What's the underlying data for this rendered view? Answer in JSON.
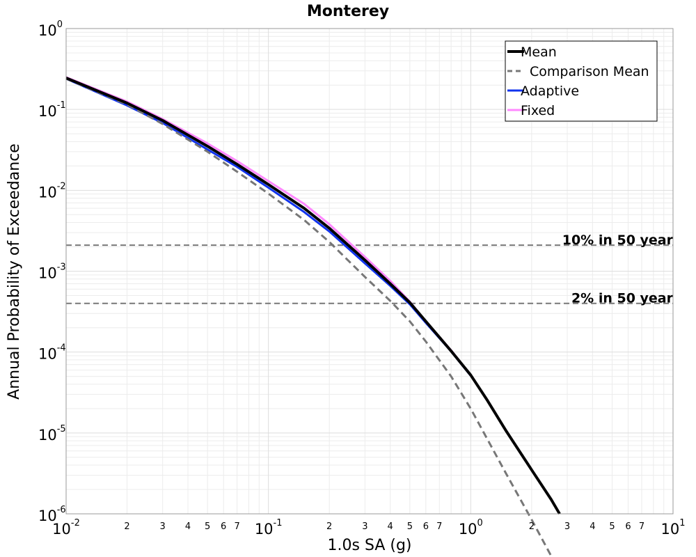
{
  "chart_data": {
    "type": "line",
    "title": "Monterey",
    "xlabel": "1.0s SA (g)",
    "ylabel": "Annual Probability of Exceedance",
    "xscale": "log",
    "yscale": "log",
    "xlim": [
      0.01,
      10
    ],
    "ylim": [
      1e-06,
      1
    ],
    "grid": true,
    "legend_position": "top-right",
    "x_tick_labels": [
      {
        "value": 0.01,
        "base": "10",
        "exp": "-2"
      },
      {
        "value": 0.1,
        "base": "10",
        "exp": "-1"
      },
      {
        "value": 1,
        "base": "10",
        "exp": "0"
      },
      {
        "value": 10,
        "base": "10",
        "exp": "1"
      }
    ],
    "x_minor_tick_labels": [
      "2",
      "3",
      "4",
      "5",
      "6",
      "7"
    ],
    "y_tick_labels": [
      {
        "value": 1,
        "base": "10",
        "exp": "0"
      },
      {
        "value": 0.1,
        "base": "10",
        "exp": "-1"
      },
      {
        "value": 0.01,
        "base": "10",
        "exp": "-2"
      },
      {
        "value": 0.001,
        "base": "10",
        "exp": "-3"
      },
      {
        "value": 0.0001,
        "base": "10",
        "exp": "-4"
      },
      {
        "value": 1e-05,
        "base": "10",
        "exp": "-5"
      },
      {
        "value": 1e-06,
        "base": "10",
        "exp": "-6"
      }
    ],
    "series": [
      {
        "name": "Fixed",
        "color": "#ff88ff",
        "style": "solid",
        "width": 3,
        "x": [
          0.01,
          0.02,
          0.03,
          0.05,
          0.07,
          0.1,
          0.15,
          0.2,
          0.3,
          0.4,
          0.5,
          0.6,
          0.8,
          1.0
        ],
        "y": [
          0.25,
          0.125,
          0.076,
          0.038,
          0.023,
          0.013,
          0.0068,
          0.0038,
          0.0015,
          0.00076,
          0.00042,
          0.00024,
          0.000105,
          5.2e-05
        ]
      },
      {
        "name": "Adaptive",
        "color": "#1133ee",
        "style": "solid",
        "width": 3,
        "x": [
          0.01,
          0.02,
          0.03,
          0.05,
          0.07,
          0.1,
          0.15,
          0.2,
          0.3,
          0.4,
          0.5,
          0.6,
          0.8,
          1.0
        ],
        "y": [
          0.24,
          0.112,
          0.068,
          0.032,
          0.0195,
          0.0108,
          0.0054,
          0.0031,
          0.00125,
          0.00066,
          0.00039,
          0.00023,
          0.000102,
          5.1e-05
        ]
      },
      {
        "name": "Comparison Mean",
        "color": "#777777",
        "style": "dashed",
        "width": 3,
        "x": [
          0.01,
          0.02,
          0.03,
          0.05,
          0.07,
          0.1,
          0.15,
          0.2,
          0.3,
          0.4,
          0.5,
          0.6,
          0.8,
          1.0,
          1.5,
          2.0,
          2.5
        ],
        "y": [
          0.24,
          0.115,
          0.066,
          0.03,
          0.017,
          0.0091,
          0.0043,
          0.0023,
          0.00085,
          0.00043,
          0.00024,
          0.000135,
          5e-05,
          2e-05,
          3.1e-06,
          8.5e-07,
          3e-07
        ]
      },
      {
        "name": "Mean",
        "color": "#000000",
        "style": "solid",
        "width": 4,
        "x": [
          0.01,
          0.02,
          0.03,
          0.05,
          0.07,
          0.1,
          0.15,
          0.2,
          0.3,
          0.4,
          0.5,
          0.6,
          0.8,
          1.0,
          1.2,
          1.5,
          2.0,
          2.5,
          2.75
        ],
        "y": [
          0.245,
          0.12,
          0.073,
          0.035,
          0.021,
          0.0118,
          0.006,
          0.0034,
          0.00137,
          0.0007,
          0.00041,
          0.00024,
          0.000103,
          5.2e-05,
          2.6e-05,
          1.05e-05,
          3.5e-06,
          1.5e-06,
          1e-06
        ]
      }
    ],
    "legend_order": [
      "Mean",
      "Comparison Mean",
      "Adaptive",
      "Fixed"
    ],
    "reference_lines": [
      {
        "label": "10% in 50 year",
        "y": 0.0021
      },
      {
        "label": "2% in 50 year",
        "y": 0.0004
      }
    ]
  }
}
